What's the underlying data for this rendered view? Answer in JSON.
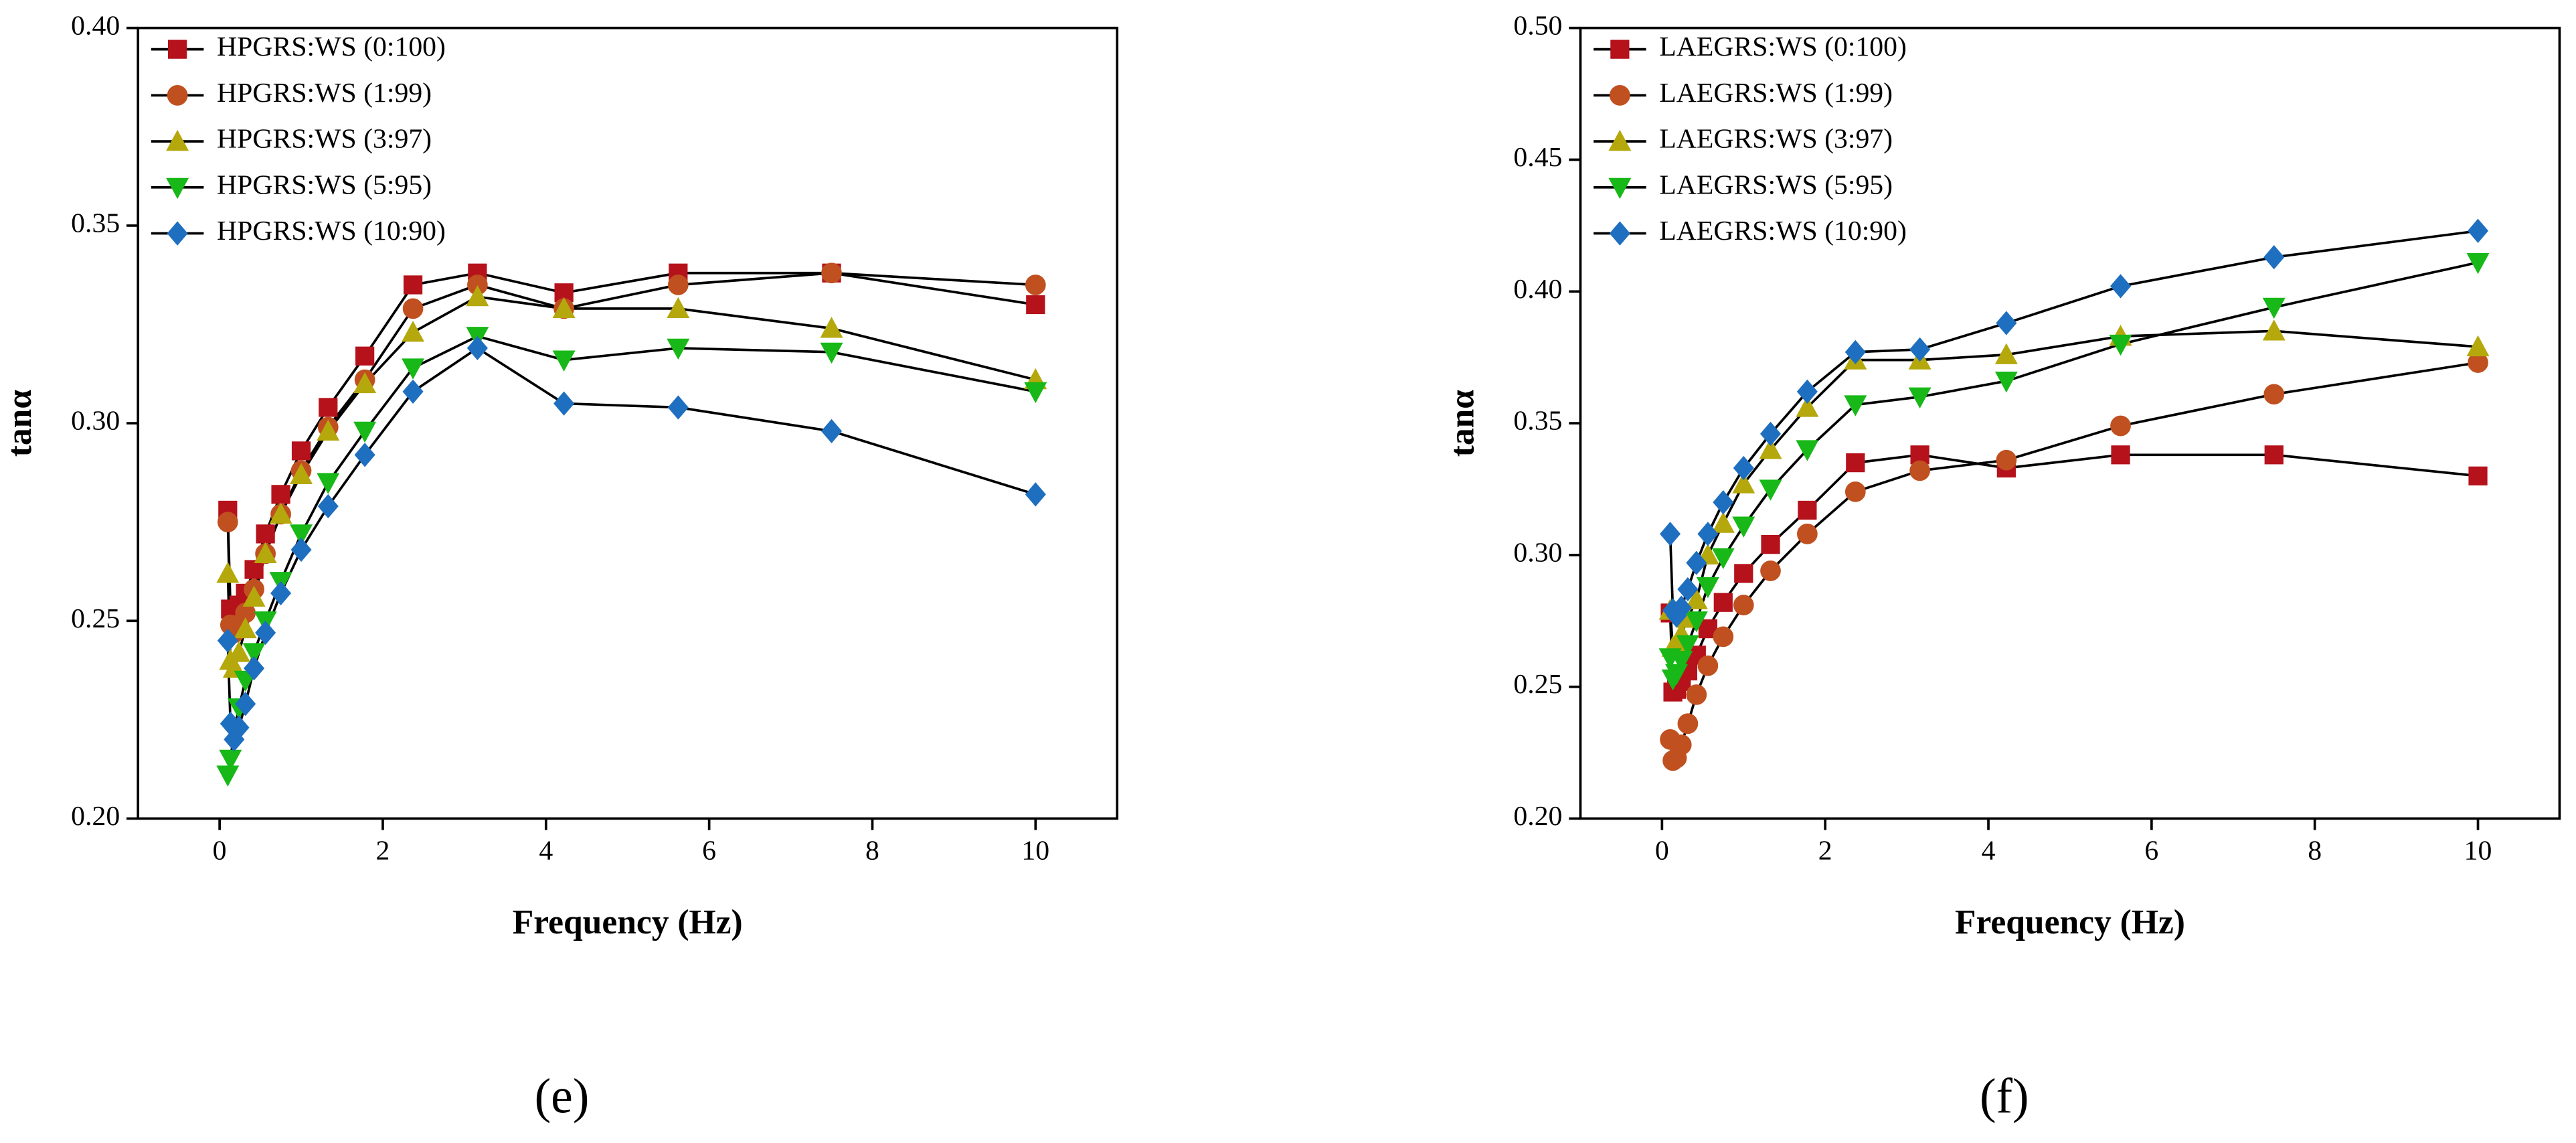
{
  "chart_data": [
    {
      "type": "line",
      "caption": "(e)",
      "xlabel": "Frequency (Hz)",
      "ylabel": "tanα",
      "legend": "upper left",
      "x": [
        0.1,
        0.133,
        0.178,
        0.237,
        0.316,
        0.422,
        0.562,
        0.75,
        1,
        1.33,
        1.78,
        2.37,
        3.16,
        4.22,
        5.62,
        7.5,
        10
      ],
      "xlim": [
        -1,
        11
      ],
      "xticks": [
        0,
        2,
        4,
        6,
        8,
        10
      ],
      "ylim": [
        0.2,
        0.4
      ],
      "yticks": [
        {
          "value": 0.2,
          "label": "0.20"
        },
        {
          "value": 0.25,
          "label": "0.25"
        },
        {
          "value": 0.3,
          "label": "0.30"
        },
        {
          "value": 0.35,
          "label": "0.35"
        },
        {
          "value": 0.4,
          "label": "0.40"
        }
      ],
      "series": [
        {
          "name": "HPGRS:WS (0:100)",
          "color": "#b5121b",
          "marker": "square",
          "values": [
            0.278,
            0.253,
            0.252,
            0.254,
            0.257,
            0.263,
            0.272,
            0.282,
            0.293,
            0.304,
            0.317,
            0.335,
            0.338,
            0.333,
            0.338,
            0.338,
            0.33
          ]
        },
        {
          "name": "HPGRS:WS (1:99)",
          "color": "#c0501f",
          "marker": "circle",
          "values": [
            0.275,
            0.249,
            0.247,
            0.249,
            0.252,
            0.258,
            0.267,
            0.277,
            0.288,
            0.299,
            0.311,
            0.329,
            0.335,
            0.329,
            0.335,
            0.338,
            0.335
          ]
        },
        {
          "name": "HPGRS:WS (3:97)",
          "color": "#b5a80c",
          "marker": "triangle-up",
          "values": [
            0.262,
            0.24,
            0.238,
            0.242,
            0.248,
            0.256,
            0.267,
            0.277,
            0.287,
            0.298,
            0.31,
            0.323,
            0.332,
            0.329,
            0.329,
            0.324,
            0.311
          ]
        },
        {
          "name": "HPGRS:WS (5:95)",
          "color": "#17b817",
          "marker": "triangle-down",
          "values": [
            0.211,
            0.215,
            0.222,
            0.228,
            0.235,
            0.242,
            0.25,
            0.26,
            0.272,
            0.285,
            0.298,
            0.314,
            0.322,
            0.316,
            0.319,
            0.318,
            0.308
          ]
        },
        {
          "name": "HPGRS:WS (10:90)",
          "color": "#1f6fc0",
          "marker": "diamond",
          "values": [
            0.245,
            0.224,
            0.22,
            0.223,
            0.229,
            0.238,
            0.247,
            0.257,
            0.268,
            0.279,
            0.292,
            0.308,
            0.319,
            0.305,
            0.304,
            0.298,
            0.282
          ]
        }
      ]
    },
    {
      "type": "line",
      "caption": "(f)",
      "xlabel": "Frequency (Hz)",
      "ylabel": "tanα",
      "legend": "upper left",
      "x": [
        0.1,
        0.133,
        0.178,
        0.237,
        0.316,
        0.422,
        0.562,
        0.75,
        1,
        1.33,
        1.78,
        2.37,
        3.16,
        4.22,
        5.62,
        7.5,
        10
      ],
      "xlim": [
        -1,
        11
      ],
      "xticks": [
        0,
        2,
        4,
        6,
        8,
        10
      ],
      "ylim": [
        0.2,
        0.5
      ],
      "yticks": [
        {
          "value": 0.2,
          "label": "0.20"
        },
        {
          "value": 0.25,
          "label": "0.25"
        },
        {
          "value": 0.3,
          "label": "0.30"
        },
        {
          "value": 0.35,
          "label": "0.35"
        },
        {
          "value": 0.4,
          "label": "0.40"
        },
        {
          "value": 0.45,
          "label": "0.45"
        },
        {
          "value": 0.5,
          "label": "0.50"
        }
      ],
      "series": [
        {
          "name": "LAEGRS:WS (0:100)",
          "color": "#b5121b",
          "marker": "square",
          "values": [
            0.278,
            0.248,
            0.249,
            0.252,
            0.256,
            0.262,
            0.272,
            0.282,
            0.293,
            0.304,
            0.317,
            0.335,
            0.338,
            0.333,
            0.338,
            0.338,
            0.33
          ]
        },
        {
          "name": "LAEGRS:WS (1:99)",
          "color": "#c0501f",
          "marker": "circle",
          "values": [
            0.23,
            0.222,
            0.223,
            0.228,
            0.236,
            0.247,
            0.258,
            0.269,
            0.281,
            0.294,
            0.308,
            0.324,
            0.332,
            0.336,
            0.349,
            0.361,
            0.373
          ]
        },
        {
          "name": "LAEGRS:WS (3:97)",
          "color": "#b5a80c",
          "marker": "triangle-up",
          "values": [
            0.279,
            0.265,
            0.266,
            0.27,
            0.276,
            0.283,
            0.3,
            0.312,
            0.327,
            0.34,
            0.356,
            0.374,
            0.374,
            0.376,
            0.383,
            0.385,
            0.379
          ]
        },
        {
          "name": "LAEGRS:WS (5:95)",
          "color": "#17b817",
          "marker": "triangle-down",
          "values": [
            0.261,
            0.253,
            0.255,
            0.26,
            0.266,
            0.275,
            0.288,
            0.299,
            0.311,
            0.325,
            0.34,
            0.357,
            0.36,
            0.366,
            0.38,
            0.394,
            0.411
          ]
        },
        {
          "name": "LAEGRS:WS (10:90)",
          "color": "#1f6fc0",
          "marker": "diamond",
          "values": [
            0.308,
            0.279,
            0.277,
            0.28,
            0.287,
            0.297,
            0.308,
            0.32,
            0.333,
            0.346,
            0.362,
            0.377,
            0.378,
            0.388,
            0.402,
            0.413,
            0.423
          ]
        }
      ]
    }
  ]
}
